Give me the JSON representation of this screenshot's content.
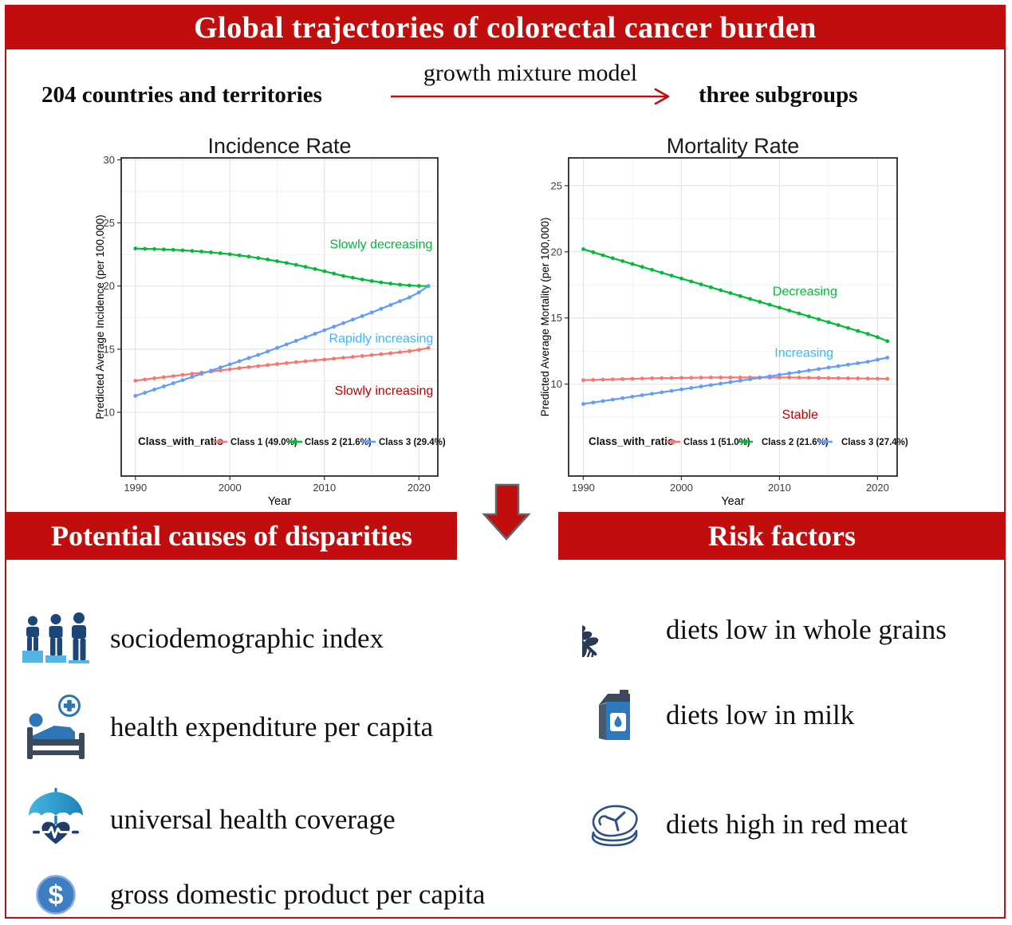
{
  "header": {
    "title": "Global trajectories of colorectal cancer burden"
  },
  "flow": {
    "left": "204 countries and territories",
    "arrow_label": "growth mixture model",
    "right": "three subgroups"
  },
  "section_banners": {
    "left": "Potential causes of disparities",
    "right": "Risk factors"
  },
  "colors": {
    "banner_red": "#c00d0d",
    "class1_red": "#f8766d",
    "class2_green": "#00ba38",
    "class3_blue": "#619cff",
    "annotation_blue": "#38b6ff",
    "annotation_dark_red": "#c00000",
    "icon_navy": "#1b4677",
    "icon_light_blue": "#56b3e6",
    "icon_steel_blue": "#2e75b6"
  },
  "chart_data": [
    {
      "type": "line",
      "title": "Incidence Rate",
      "xlabel": "Year",
      "ylabel": "Predicted Average Incidence (per 100,000)",
      "legend_title": "Class_with_ratio",
      "xticks": [
        1990,
        2000,
        2010,
        2020
      ],
      "yticks": [
        10,
        15,
        20,
        25,
        30
      ],
      "x_minor": [
        1995,
        2005,
        2015
      ],
      "y_minor": [
        12.5,
        17.5,
        22.5,
        27.5
      ],
      "xlim": [
        1988.5,
        2022.0
      ],
      "ylim": [
        4.95,
        30.15
      ],
      "grid": true,
      "legend_position": "inside-bottom",
      "x": [
        1990,
        1991,
        1992,
        1993,
        1994,
        1995,
        1996,
        1997,
        1998,
        1999,
        2000,
        2001,
        2002,
        2003,
        2004,
        2005,
        2006,
        2007,
        2008,
        2009,
        2010,
        2011,
        2012,
        2013,
        2014,
        2015,
        2016,
        2017,
        2018,
        2019,
        2020,
        2021
      ],
      "series": [
        {
          "name": "Class 1 (49.0%)",
          "color": "#f8766d",
          "values": [
            12.5,
            12.6,
            12.69,
            12.78,
            12.87,
            12.96,
            13.05,
            13.14,
            13.23,
            13.32,
            13.41,
            13.5,
            13.58,
            13.66,
            13.74,
            13.82,
            13.9,
            13.97,
            14.04,
            14.11,
            14.18,
            14.25,
            14.32,
            14.39,
            14.46,
            14.53,
            14.6,
            14.68,
            14.76,
            14.84,
            14.95,
            15.1
          ]
        },
        {
          "name": "Class 2 (21.6%)",
          "color": "#00ba38",
          "values": [
            22.97,
            22.95,
            22.93,
            22.9,
            22.87,
            22.83,
            22.78,
            22.73,
            22.67,
            22.6,
            22.52,
            22.43,
            22.33,
            22.22,
            22.1,
            21.97,
            21.83,
            21.68,
            21.52,
            21.35,
            21.17,
            20.99,
            20.8,
            20.66,
            20.52,
            20.4,
            20.29,
            20.19,
            20.11,
            20.05,
            20.01,
            20.0
          ]
        },
        {
          "name": "Class 3 (29.4%)",
          "color": "#619cff",
          "values": [
            11.3,
            11.55,
            11.8,
            12.05,
            12.3,
            12.55,
            12.8,
            13.05,
            13.3,
            13.55,
            13.8,
            14.05,
            14.3,
            14.55,
            14.82,
            15.1,
            15.38,
            15.66,
            15.94,
            16.22,
            16.5,
            16.78,
            17.06,
            17.34,
            17.62,
            17.9,
            18.2,
            18.5,
            18.8,
            19.1,
            19.5,
            20.0
          ]
        }
      ],
      "annotations": [
        {
          "text": "Slowly decreasing",
          "x": 2016.0,
          "y": 23.3,
          "color": "#00ba38"
        },
        {
          "text": "Rapidly increasing",
          "x": 2016.0,
          "y": 15.85,
          "color": "#38b6ff"
        },
        {
          "text": "Slowly increasing",
          "x": 2016.3,
          "y": 11.7,
          "color": "#c00000"
        }
      ]
    },
    {
      "type": "line",
      "title": "Mortality Rate",
      "xlabel": "Year",
      "ylabel": "Predicted Average Mortality (per 100,000)",
      "legend_title": "Class_with_ratio",
      "xticks": [
        1990,
        2000,
        2010,
        2020
      ],
      "yticks": [
        10,
        15,
        20,
        25
      ],
      "x_minor": [
        1995,
        2005,
        2015
      ],
      "y_minor": [
        7.5,
        12.5,
        17.5,
        22.5
      ],
      "xlim": [
        1988.5,
        2022.0
      ],
      "ylim": [
        3.05,
        27.1
      ],
      "grid": true,
      "legend_position": "inside-bottom",
      "x": [
        1990,
        1991,
        1992,
        1993,
        1994,
        1995,
        1996,
        1997,
        1998,
        1999,
        2000,
        2001,
        2002,
        2003,
        2004,
        2005,
        2006,
        2007,
        2008,
        2009,
        2010,
        2011,
        2012,
        2013,
        2014,
        2015,
        2016,
        2017,
        2018,
        2019,
        2020,
        2021
      ],
      "series": [
        {
          "name": "Class 1 (51.0%)",
          "color": "#f8766d",
          "values": [
            10.3,
            10.32,
            10.34,
            10.36,
            10.38,
            10.4,
            10.42,
            10.44,
            10.45,
            10.46,
            10.47,
            10.48,
            10.49,
            10.5,
            10.5,
            10.5,
            10.5,
            10.5,
            10.5,
            10.5,
            10.5,
            10.5,
            10.49,
            10.48,
            10.47,
            10.46,
            10.45,
            10.44,
            10.43,
            10.42,
            10.41,
            10.4
          ]
        },
        {
          "name": "Class 2 (21.6%)",
          "color": "#00ba38",
          "values": [
            20.2,
            19.97,
            19.74,
            19.52,
            19.3,
            19.08,
            18.86,
            18.64,
            18.42,
            18.2,
            17.98,
            17.76,
            17.54,
            17.32,
            17.1,
            16.88,
            16.66,
            16.44,
            16.22,
            16.0,
            15.78,
            15.56,
            15.34,
            15.12,
            14.9,
            14.68,
            14.46,
            14.24,
            14.02,
            13.8,
            13.55,
            13.25
          ]
        },
        {
          "name": "Class 3 (27.4%)",
          "color": "#619cff",
          "values": [
            8.5,
            8.61,
            8.72,
            8.83,
            8.94,
            9.05,
            9.16,
            9.27,
            9.38,
            9.49,
            9.6,
            9.71,
            9.82,
            9.93,
            10.04,
            10.15,
            10.26,
            10.37,
            10.48,
            10.59,
            10.7,
            10.81,
            10.92,
            11.03,
            11.14,
            11.25,
            11.36,
            11.47,
            11.58,
            11.69,
            11.85,
            12.0
          ]
        }
      ],
      "annotations": [
        {
          "text": "Decreasing",
          "x": 2012.6,
          "y": 17.0,
          "color": "#00ba38"
        },
        {
          "text": "Increasing",
          "x": 2012.5,
          "y": 12.35,
          "color": "#38b6ff"
        },
        {
          "text": "Stable",
          "x": 2012.1,
          "y": 7.7,
          "color": "#c00000"
        }
      ]
    }
  ],
  "causes": {
    "items": [
      {
        "icon": "people-podium-icon",
        "label": "sociodemographic index"
      },
      {
        "icon": "hospital-bed-icon",
        "label": "health expenditure per capita"
      },
      {
        "icon": "umbrella-heart-icon",
        "label": "universal health coverage"
      },
      {
        "icon": "dollar-circle-icon",
        "label": "gross domestic product per capita"
      }
    ]
  },
  "risk_factors": {
    "items": [
      {
        "icon": "wheat-icon",
        "label": "diets low in whole grains"
      },
      {
        "icon": "milk-carton-icon",
        "label": "diets low in milk"
      },
      {
        "icon": "steak-icon",
        "label": "diets high in red meat"
      }
    ]
  }
}
